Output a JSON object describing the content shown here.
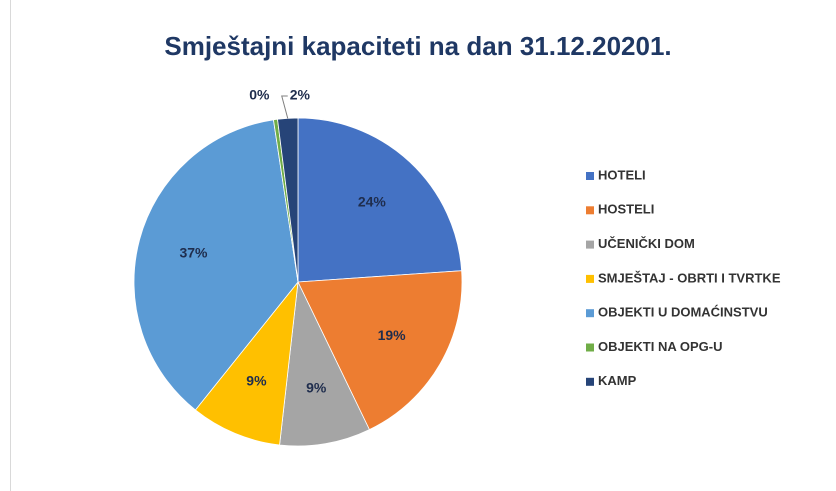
{
  "chart_data": {
    "type": "pie",
    "title": "Smještajni kapaciteti na dan 31.12.20201.",
    "categories": [
      "HOTELI",
      "HOSTELI",
      "UČENIČKI DOM",
      "SMJEŠTAJ - OBRTI I TVRTKE",
      "OBJEKTI U DOMAĆINSTVU",
      "OBJEKTI NA OPG-U",
      "KAMP"
    ],
    "values": [
      24,
      19,
      9,
      9,
      37,
      0.4,
      2
    ],
    "value_labels": [
      "24%",
      "19%",
      "9%",
      "9%",
      "37%",
      "0%",
      "2%"
    ],
    "colors": [
      "#4472c4",
      "#ed7d31",
      "#a5a5a5",
      "#ffc000",
      "#5b9bd5",
      "#70ad47",
      "#264478"
    ],
    "legend": "right"
  }
}
